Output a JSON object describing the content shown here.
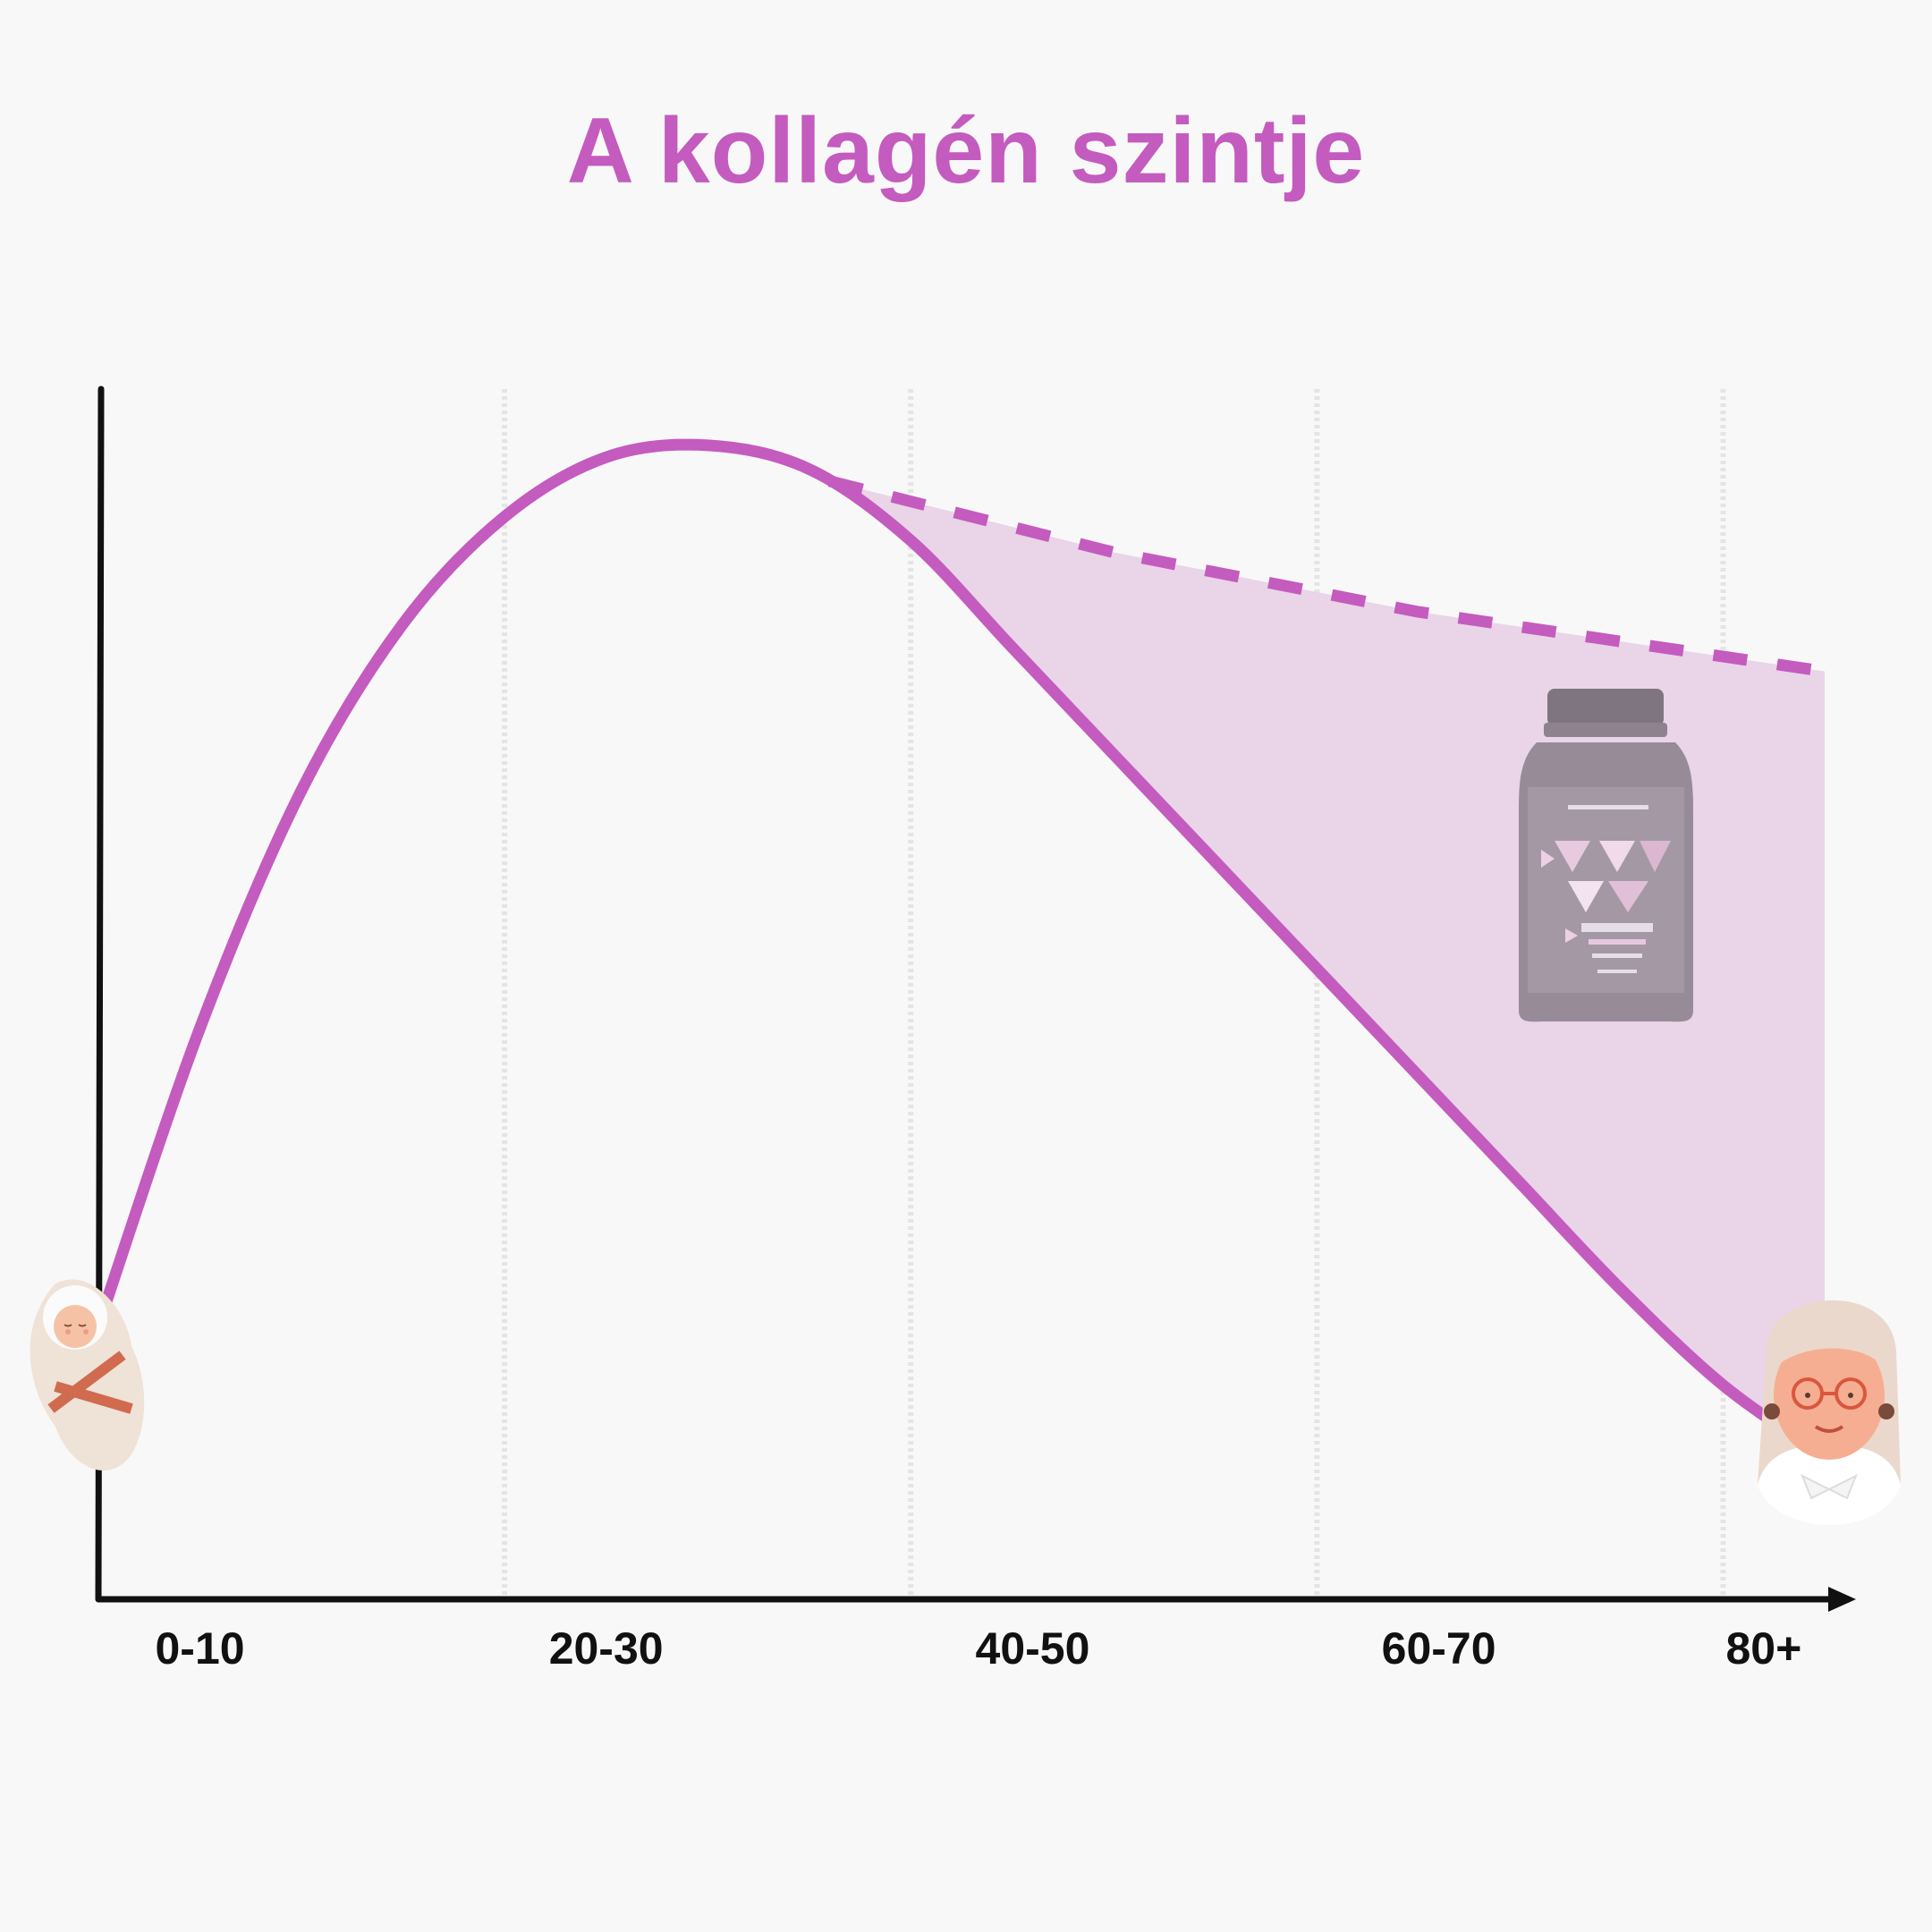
{
  "title": "A kollagén szintje",
  "colors": {
    "accent": "#c45bbf",
    "fill": "#e9d4e8",
    "axis": "#111111",
    "grid": "#e4e4e4"
  },
  "chart_data": {
    "type": "line",
    "title": "A kollagén szintje",
    "xlabel": "",
    "ylabel": "",
    "categories": [
      "0-10",
      "20-30",
      "40-50",
      "60-70",
      "80+"
    ],
    "grid": true,
    "series": [
      {
        "style": "solid",
        "x": [
          0,
          5,
          10,
          15,
          20,
          25,
          30,
          35,
          40,
          45,
          50,
          55,
          60,
          65,
          70,
          75,
          80,
          85
        ],
        "y": [
          23,
          48,
          68,
          82,
          91,
          96,
          97,
          95,
          89,
          80,
          71,
          62,
          53,
          44,
          35,
          26,
          18,
          12
        ]
      },
      {
        "style": "dashed",
        "x": [
          36,
          50,
          65,
          85
        ],
        "y": [
          94,
          88,
          83,
          78
        ]
      }
    ],
    "shaded_region": "between dashed and solid lines from 36 to 85",
    "illustrations": [
      "baby-icon",
      "collagen-jar-icon",
      "grandma-icon"
    ]
  }
}
